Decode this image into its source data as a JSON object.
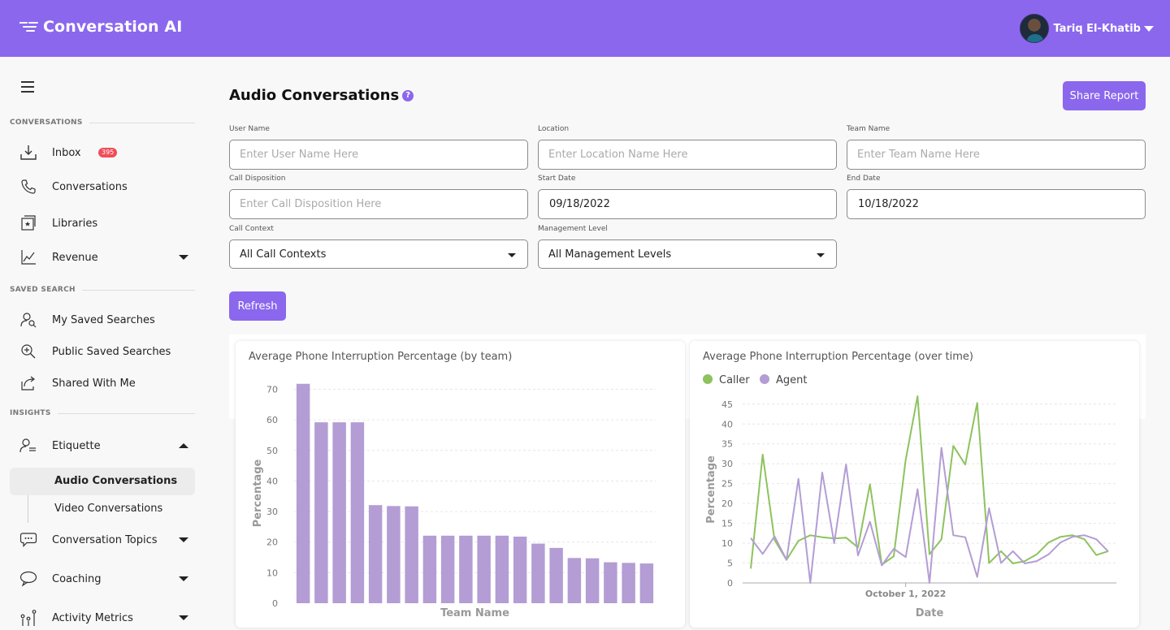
{
  "header": {
    "app_title": "Conversation AI",
    "user_name": "Tariq El-Khatib"
  },
  "sidebar": {
    "sections": {
      "conversations": "CONVERSATIONS",
      "saved_search": "SAVED SEARCH",
      "insights": "INSIGHTS"
    },
    "items": {
      "inbox": "Inbox",
      "inbox_badge": "395",
      "conversations": "Conversations",
      "libraries": "Libraries",
      "revenue": "Revenue",
      "my_saved": "My Saved Searches",
      "public_saved": "Public Saved Searches",
      "shared": "Shared With Me",
      "etiquette": "Etiquette",
      "audio": "Audio Conversations",
      "video": "Video Conversations",
      "topics": "Conversation Topics",
      "coaching": "Coaching",
      "activity": "Activity Metrics"
    }
  },
  "main": {
    "title": "Audio Conversations",
    "share_button": "Share Report",
    "refresh_button": "Refresh",
    "fields": {
      "user_name": {
        "label": "User Name",
        "placeholder": "Enter User Name Here"
      },
      "location": {
        "label": "Location",
        "placeholder": "Enter Location Name Here"
      },
      "team_name": {
        "label": "Team Name",
        "placeholder": "Enter Team Name Here"
      },
      "call_disposition": {
        "label": "Call Disposition",
        "placeholder": "Enter Call Disposition Here"
      },
      "start_date": {
        "label": "Start Date",
        "value": "09/18/2022"
      },
      "end_date": {
        "label": "End Date",
        "value": "10/18/2022"
      },
      "call_context": {
        "label": "Call Context",
        "value": "All Call Contexts"
      },
      "management_level": {
        "label": "Management Level",
        "value": "All Management Levels"
      }
    }
  },
  "chart_data": [
    {
      "type": "bar",
      "title": "Average Phone Interruption Percentage (by team)",
      "xlabel": "Team Name",
      "ylabel": "Percentage",
      "ylim": [
        0,
        72
      ],
      "yticks": [
        0,
        10,
        20,
        30,
        40,
        50,
        60,
        70
      ],
      "color": "#b39dd4",
      "values": [
        71.8,
        59.2,
        59.2,
        59.2,
        32.1,
        31.8,
        31.7,
        22.1,
        22.1,
        22.1,
        22.1,
        22.1,
        21.8,
        19.5,
        18.1,
        14.8,
        14.7,
        13.4,
        13.2,
        13.0
      ],
      "grid": true
    },
    {
      "type": "line",
      "title": "Average Phone Interruption Percentage (over time)",
      "xlabel": "Date",
      "ylabel": "Percentage",
      "ylim": [
        0,
        47
      ],
      "yticks": [
        0,
        5,
        10,
        15,
        20,
        25,
        30,
        35,
        40,
        45
      ],
      "x_tick_label": "October 1, 2022",
      "legend_position": "top-left",
      "grid": true,
      "x": [
        "2022-09-18",
        "2022-09-19",
        "2022-09-20",
        "2022-09-21",
        "2022-09-22",
        "2022-09-23",
        "2022-09-24",
        "2022-09-25",
        "2022-09-26",
        "2022-09-27",
        "2022-09-28",
        "2022-09-29",
        "2022-09-30",
        "2022-10-01",
        "2022-10-02",
        "2022-10-03",
        "2022-10-04",
        "2022-10-05",
        "2022-10-06",
        "2022-10-07",
        "2022-10-08",
        "2022-10-09",
        "2022-10-10",
        "2022-10-11",
        "2022-10-12",
        "2022-10-13",
        "2022-10-14",
        "2022-10-15",
        "2022-10-16",
        "2022-10-17",
        "2022-10-18"
      ],
      "series": [
        {
          "name": "Caller",
          "color": "#8dc35e",
          "values": [
            3.6,
            32.3,
            10.8,
            5.8,
            10.6,
            12.0,
            11.5,
            11.2,
            11.4,
            8.9,
            24.8,
            4.6,
            6.7,
            31.0,
            47.0,
            7.2,
            11.0,
            34.5,
            29.8,
            45.3,
            5.0,
            8.0,
            4.9,
            5.5,
            7.2,
            10.2,
            11.6,
            12.0,
            11.0,
            7.0,
            8.0
          ]
        },
        {
          "name": "Agent",
          "color": "#b39dd4",
          "values": [
            11.3,
            7.3,
            11.7,
            5.8,
            26.2,
            0.0,
            27.8,
            10.0,
            29.8,
            6.9,
            15.4,
            4.4,
            8.6,
            6.5,
            23.6,
            0.0,
            34.0,
            12.0,
            11.5,
            1.5,
            18.8,
            5.0,
            8.0,
            4.9,
            5.5,
            7.2,
            10.2,
            11.6,
            12.0,
            11.0,
            7.9
          ]
        }
      ]
    }
  ]
}
